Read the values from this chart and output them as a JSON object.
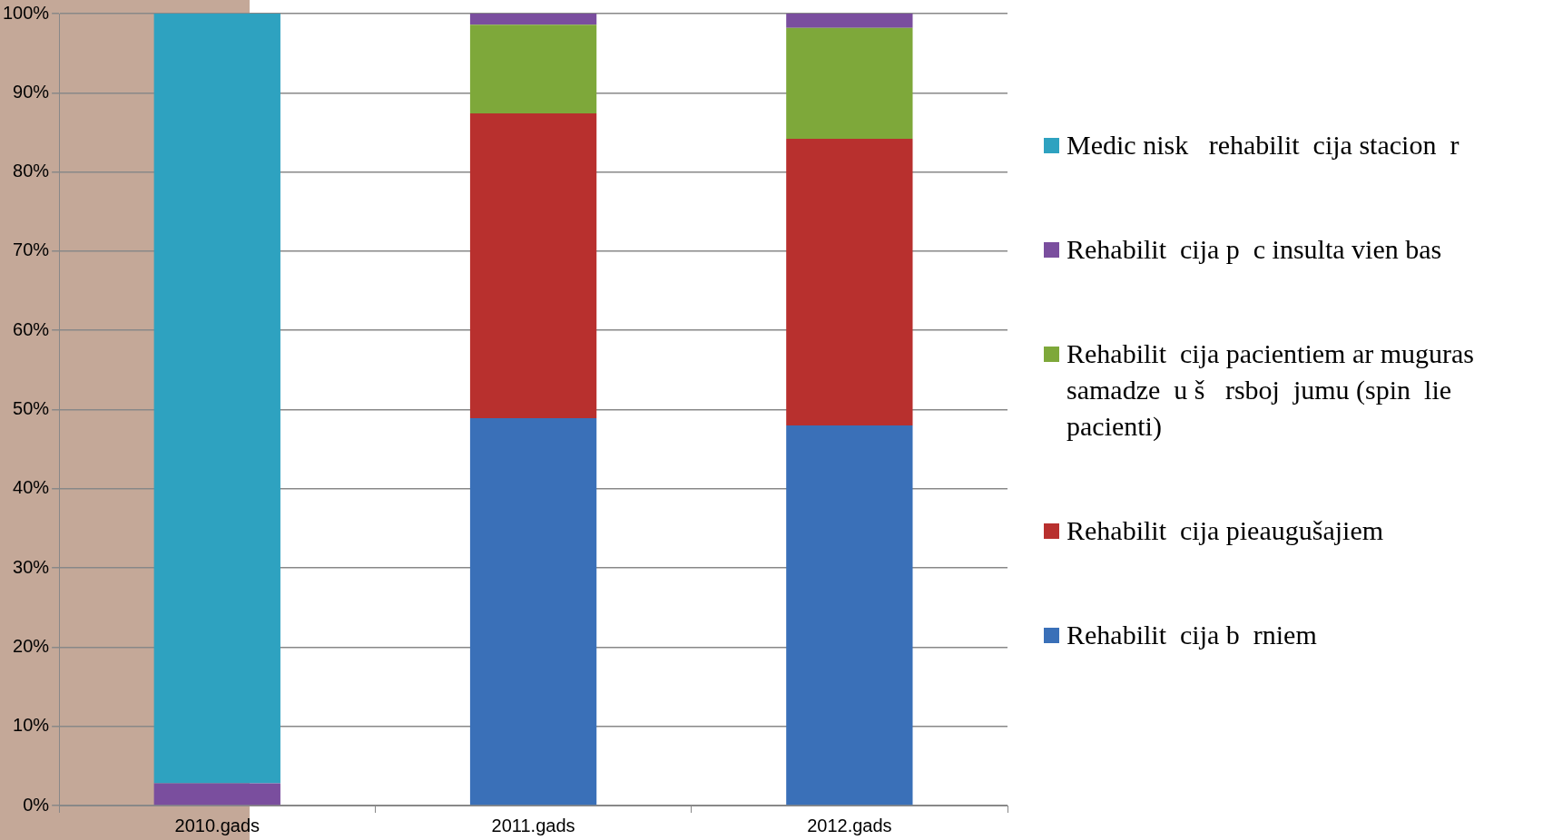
{
  "chart_data": {
    "type": "bar",
    "stacked": true,
    "categories": [
      "2010.gads",
      "2011.gads",
      "2012.gads"
    ],
    "series": [
      {
        "name": "Rehabilit  cija b  rniem",
        "color": "#3a70b8",
        "values": [
          0,
          48.9,
          48.0
        ]
      },
      {
        "name": "Rehabilit  cija pieaugušajiem",
        "color": "#b8302e",
        "values": [
          0,
          38.5,
          36.2
        ]
      },
      {
        "name": "Rehabilit  cija pacientiem ar muguras samadze  u š   rsboj  jumu (spin  lie pacienti)",
        "color": "#7ea83a",
        "values": [
          0,
          11.2,
          14.0
        ]
      },
      {
        "name": "Rehabilit  cija p  c insulta vien bas",
        "color": "#7a4e9e",
        "values": [
          2.8,
          1.4,
          1.8
        ]
      },
      {
        "name": "Medic nisk   rehabilit  cija stacion  r",
        "color": "#2ea2c0",
        "values": [
          97.2,
          0,
          0
        ]
      }
    ],
    "ylim": [
      0,
      100
    ],
    "yticks": [
      {
        "value": 0,
        "label": "0%"
      },
      {
        "value": 10,
        "label": "10%"
      },
      {
        "value": 20,
        "label": "20%"
      },
      {
        "value": 30,
        "label": "30%"
      },
      {
        "value": 40,
        "label": "40%"
      },
      {
        "value": 50,
        "label": "50%"
      },
      {
        "value": 60,
        "label": "60%"
      },
      {
        "value": 70,
        "label": "70%"
      },
      {
        "value": 80,
        "label": "80%"
      },
      {
        "value": 90,
        "label": "90%"
      },
      {
        "value": 100,
        "label": "100%"
      }
    ],
    "grid": "y",
    "legend": "right"
  }
}
